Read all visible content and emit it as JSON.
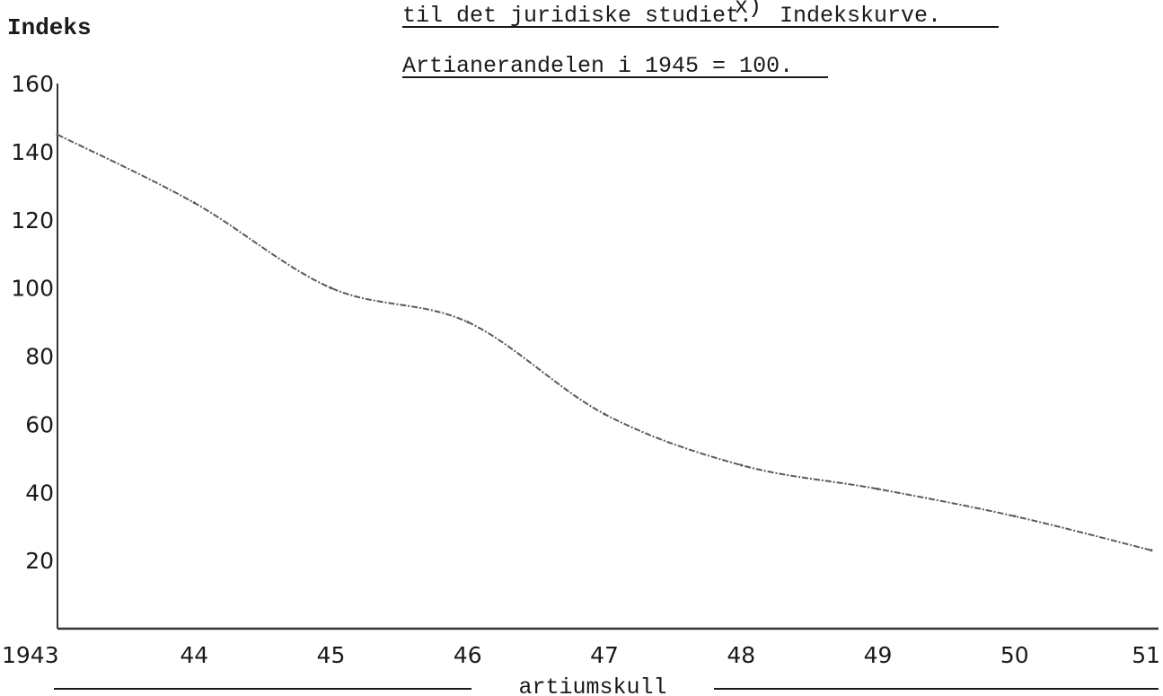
{
  "chart_data": {
    "type": "line",
    "title_lines": [
      "til det juridiske studiet.",
      "Artianerandelen i 1945 = 100."
    ],
    "title_suffix": "Indekskurve.",
    "footnote_marker": "x)",
    "ylabel": "Indeks",
    "xlabel": "artiumskull",
    "ylim": [
      0,
      160
    ],
    "y_ticks": [
      "20",
      "40",
      "60",
      "80",
      "100",
      "120",
      "140",
      "160"
    ],
    "x_tick_labels": [
      "1943",
      "44",
      "45",
      "46",
      "47",
      "48",
      "49",
      "50",
      "51"
    ],
    "x": [
      1943,
      1944,
      1945,
      1946,
      1947,
      1948,
      1949,
      1950,
      1951
    ],
    "series": [
      {
        "values": [
          145,
          125,
          100,
          90,
          63,
          48,
          41,
          33,
          23
        ]
      }
    ],
    "colors": {
      "line": "#5a5a5a",
      "axis": "#333333"
    },
    "grid": false,
    "legend": "none"
  }
}
